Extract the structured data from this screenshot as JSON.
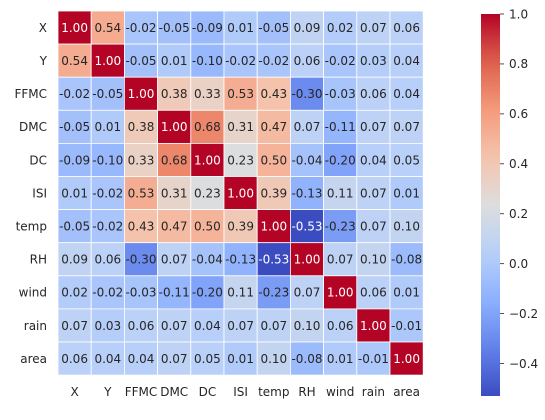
{
  "chart_data": {
    "type": "heatmap",
    "title": "",
    "xlabel": "",
    "ylabel": "",
    "x_labels": [
      "X",
      "Y",
      "FFMC",
      "DMC",
      "DC",
      "ISI",
      "temp",
      "RH",
      "wind",
      "rain",
      "area"
    ],
    "y_labels": [
      "X",
      "Y",
      "FFMC",
      "DMC",
      "DC",
      "ISI",
      "temp",
      "RH",
      "wind",
      "rain",
      "area"
    ],
    "values": [
      [
        1.0,
        0.54,
        -0.02,
        -0.05,
        -0.09,
        0.01,
        -0.05,
        0.09,
        0.02,
        0.07,
        0.06
      ],
      [
        0.54,
        1.0,
        -0.05,
        0.01,
        -0.1,
        -0.02,
        -0.02,
        0.06,
        -0.02,
        0.03,
        0.04
      ],
      [
        -0.02,
        -0.05,
        1.0,
        0.38,
        0.33,
        0.53,
        0.43,
        -0.3,
        -0.03,
        0.06,
        0.04
      ],
      [
        -0.05,
        0.01,
        0.38,
        1.0,
        0.68,
        0.31,
        0.47,
        0.07,
        -0.11,
        0.07,
        0.07
      ],
      [
        -0.09,
        -0.1,
        0.33,
        0.68,
        1.0,
        0.23,
        0.5,
        -0.04,
        -0.2,
        0.04,
        0.05
      ],
      [
        0.01,
        -0.02,
        0.53,
        0.31,
        0.23,
        1.0,
        0.39,
        -0.13,
        0.11,
        0.07,
        0.01
      ],
      [
        -0.05,
        -0.02,
        0.43,
        0.47,
        0.5,
        0.39,
        1.0,
        -0.53,
        -0.23,
        0.07,
        0.1
      ],
      [
        0.09,
        0.06,
        -0.3,
        0.07,
        -0.04,
        -0.13,
        -0.53,
        1.0,
        0.07,
        0.1,
        -0.08
      ],
      [
        0.02,
        -0.02,
        -0.03,
        -0.11,
        -0.2,
        0.11,
        -0.23,
        0.07,
        1.0,
        0.06,
        0.01
      ],
      [
        0.07,
        0.03,
        0.06,
        0.07,
        0.04,
        0.07,
        0.07,
        0.1,
        0.06,
        1.0,
        -0.01
      ],
      [
        0.06,
        0.04,
        0.04,
        0.07,
        0.05,
        0.01,
        0.1,
        -0.08,
        0.01,
        -0.01,
        1.0
      ]
    ],
    "value_format": "2 decimals",
    "colormap": "coolwarm",
    "vmin": -0.53,
    "vmax": 1.0,
    "colorbar": {
      "ticks": [
        -0.4,
        -0.2,
        0.0,
        0.2,
        0.4,
        0.6,
        0.8,
        1.0
      ],
      "tick_labels": [
        "−0.4",
        "−0.2",
        "0.0",
        "0.2",
        "0.4",
        "0.6",
        "0.8",
        "1.0"
      ],
      "position": "right"
    },
    "grid": false,
    "cell_separator_color": "#ffffff",
    "text_color_dark": "#262626",
    "text_color_light": "#ffffff"
  }
}
